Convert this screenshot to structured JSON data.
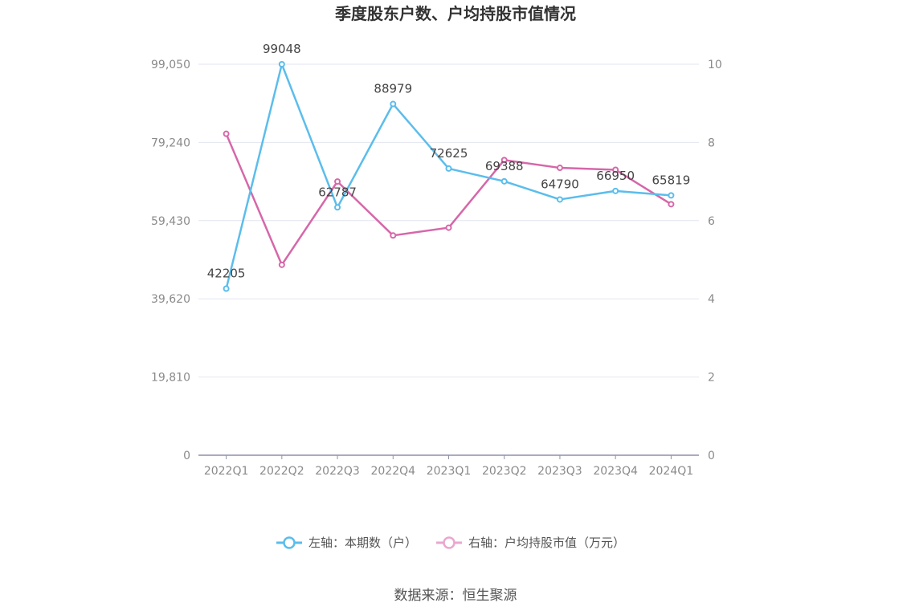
{
  "chart_data": {
    "type": "line",
    "title": "季度股东户数、户均持股市值情况",
    "categories": [
      "2022Q1",
      "2022Q2",
      "2022Q3",
      "2022Q4",
      "2023Q1",
      "2023Q2",
      "2023Q3",
      "2023Q4",
      "2024Q1"
    ],
    "y_left": {
      "ticks": [
        "0",
        "19,810",
        "39,620",
        "59,430",
        "79,240",
        "99,050"
      ],
      "min": 0,
      "max": 99050
    },
    "y_right": {
      "ticks": [
        "0",
        "2",
        "4",
        "6",
        "8",
        "10"
      ],
      "min": 0,
      "max": 10
    },
    "series": [
      {
        "name": "左轴：本期数（户）",
        "axis": "left",
        "color": "#5bbdec",
        "values": [
          42205,
          99048,
          62787,
          88979,
          72625,
          69388,
          64790,
          66950,
          65819
        ],
        "labels": [
          "42205",
          "99048",
          "62787",
          "88979",
          "72625",
          "69388",
          "64790",
          "66950",
          "65819"
        ]
      },
      {
        "name": "右轴：户均持股市值（万元）",
        "axis": "right",
        "color": "#d667a9",
        "values": [
          8.22,
          4.87,
          7.0,
          5.62,
          5.82,
          7.55,
          7.35,
          7.3,
          6.42
        ]
      }
    ],
    "grid": true,
    "legend_position": "bottom"
  },
  "source": "数据来源：恒生聚源"
}
